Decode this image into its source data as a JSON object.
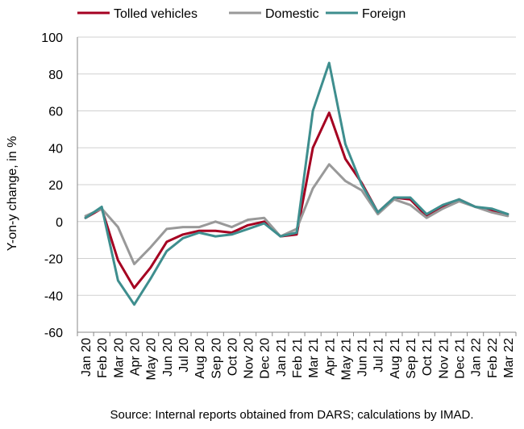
{
  "chart_data": {
    "type": "line",
    "categories": [
      "Jan 20",
      "Feb 20",
      "Mar 20",
      "Apr 20",
      "May 20",
      "Jun 20",
      "Jul 20",
      "Aug 20",
      "Sep 20",
      "Oct 20",
      "Nov 20",
      "Dec 20",
      "Jan 21",
      "Feb 21",
      "Mar 21",
      "Apr 21",
      "May 21",
      "Jun 21",
      "Jul 21",
      "Aug 21",
      "Sep 21",
      "Oct 21",
      "Nov 21",
      "Dec 21",
      "Jan 22",
      "Feb 22",
      "Mar 22"
    ],
    "series": [
      {
        "name": "Tolled vehicles",
        "color": "#a50021",
        "values": [
          2,
          7,
          -21,
          -36,
          -25,
          -11,
          -7,
          -5,
          -5,
          -6,
          -2,
          0,
          -8,
          -7,
          40,
          59,
          34,
          21,
          5,
          13,
          12,
          3,
          8,
          12,
          8,
          6,
          4
        ]
      },
      {
        "name": "Domestic",
        "color": "#999999",
        "values": [
          3,
          7,
          -3,
          -23,
          -14,
          -4,
          -3,
          -3,
          0,
          -3,
          1,
          2,
          -8,
          -4,
          18,
          31,
          22,
          17,
          4,
          12,
          9,
          2,
          7,
          11,
          8,
          5,
          3
        ]
      },
      {
        "name": "Foreign",
        "color": "#3e8e8e",
        "values": [
          2,
          8,
          -32,
          -45,
          -31,
          -16,
          -9,
          -6,
          -8,
          -7,
          -4,
          -1,
          -8,
          -6,
          60,
          86,
          42,
          20,
          5,
          13,
          13,
          4,
          9,
          12,
          8,
          7,
          4
        ]
      }
    ],
    "ylabel": "Y-on-y change, in %",
    "ylim": [
      -60,
      100
    ],
    "yticks": [
      -60,
      -40,
      -20,
      0,
      20,
      40,
      60,
      80,
      100
    ],
    "grid": true,
    "legend": "top"
  },
  "source": "Source: Internal reports obtained from DARS; calculations by IMAD."
}
